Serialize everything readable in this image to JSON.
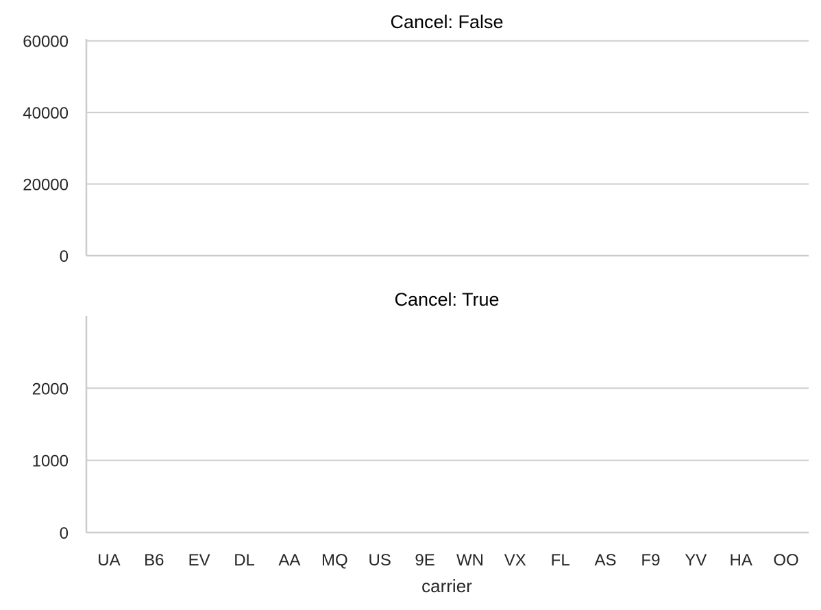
{
  "chart_data": {
    "type": "bar",
    "categories": [
      "UA",
      "B6",
      "EV",
      "DL",
      "AA",
      "MQ",
      "US",
      "9E",
      "WN",
      "VX",
      "FL",
      "AS",
      "F9",
      "YV",
      "HA",
      "OO"
    ],
    "xlabel": "carrier",
    "grid": "horizontal",
    "panels": [
      {
        "title": "Cancel: False",
        "ylim": [
          0,
          60500
        ],
        "yticks": [
          0,
          20000,
          40000,
          60000
        ],
        "ytick_labels": [
          "0",
          "20000",
          "40000",
          "60000"
        ],
        "values": []
      },
      {
        "title": "Cancel: True",
        "ylim": [
          0,
          3000
        ],
        "yticks": [
          0,
          1000,
          2000
        ],
        "ytick_labels": [
          "0",
          "1000",
          "2000"
        ],
        "values": []
      }
    ]
  }
}
